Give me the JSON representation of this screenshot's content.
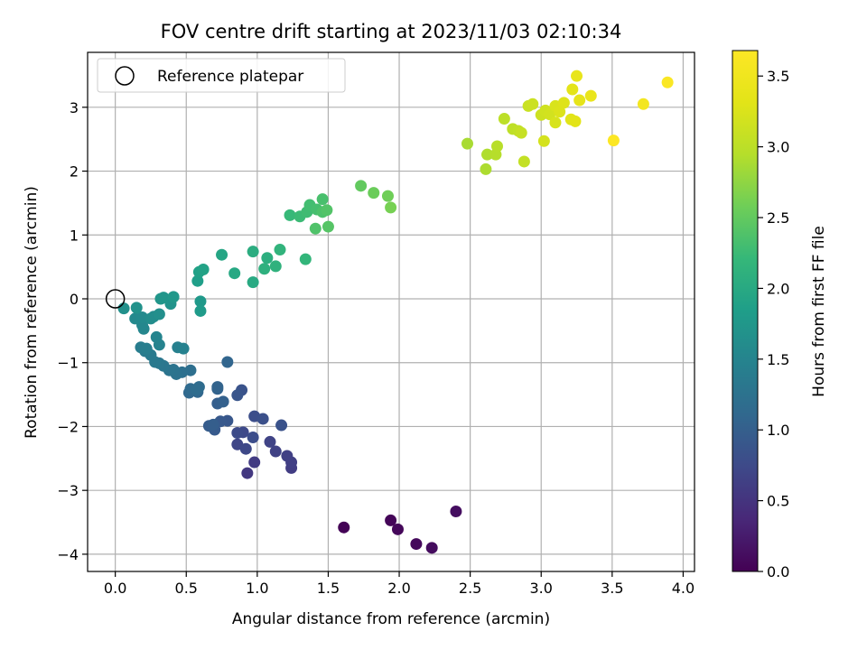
{
  "chart_data": {
    "type": "scatter",
    "title": "FOV centre drift starting at 2023/11/03 02:10:34",
    "xlabel": "Angular distance from reference (arcmin)",
    "ylabel": "Rotation from reference (arcmin)",
    "xlim": [
      -0.195,
      4.08
    ],
    "ylim": [
      -4.27,
      3.86
    ],
    "x_ticks": [
      0.0,
      0.5,
      1.0,
      1.5,
      2.0,
      2.5,
      3.0,
      3.5,
      4.0
    ],
    "x_tick_labels": [
      "0.0",
      "0.5",
      "1.0",
      "1.5",
      "2.0",
      "2.5",
      "3.0",
      "3.5",
      "4.0"
    ],
    "y_ticks": [
      -4,
      -3,
      -2,
      -1,
      0,
      1,
      2,
      3
    ],
    "y_tick_labels": [
      "−4",
      "−3",
      "−2",
      "−1",
      "0",
      "1",
      "2",
      "3"
    ],
    "grid": true,
    "legend": {
      "placement": "top-left",
      "entries": [
        "Reference platepar"
      ]
    },
    "reference_point": {
      "x": 0.0,
      "y": 0.0,
      "marker": "open-circle"
    },
    "colorbar": {
      "label": "Hours from first FF file",
      "colormap": "viridis",
      "range": [
        0.0,
        3.68
      ],
      "ticks": [
        0.0,
        0.5,
        1.0,
        1.5,
        2.0,
        2.5,
        3.0,
        3.5
      ],
      "tick_labels": [
        "0.0",
        "0.5",
        "1.0",
        "1.5",
        "2.0",
        "2.5",
        "3.0",
        "3.5"
      ]
    },
    "points": [
      [
        1.61,
        -3.58,
        0.02
      ],
      [
        1.94,
        -3.47,
        0.04
      ],
      [
        1.99,
        -3.61,
        0.06
      ],
      [
        2.12,
        -3.84,
        0.08
      ],
      [
        2.23,
        -3.9,
        0.1
      ],
      [
        2.4,
        -3.33,
        0.12
      ],
      [
        0.93,
        -2.73,
        0.55
      ],
      [
        0.98,
        -2.56,
        0.58
      ],
      [
        1.24,
        -2.65,
        0.6
      ],
      [
        1.24,
        -2.56,
        0.62
      ],
      [
        1.21,
        -2.46,
        0.64
      ],
      [
        1.13,
        -2.39,
        0.66
      ],
      [
        1.09,
        -2.24,
        0.68
      ],
      [
        0.86,
        -2.28,
        0.7
      ],
      [
        0.92,
        -2.35,
        0.72
      ],
      [
        0.9,
        -2.09,
        0.74
      ],
      [
        0.86,
        -2.1,
        0.76
      ],
      [
        0.97,
        -2.17,
        0.78
      ],
      [
        0.98,
        -1.84,
        0.8
      ],
      [
        1.04,
        -1.88,
        0.82
      ],
      [
        1.17,
        -1.98,
        0.84
      ],
      [
        0.89,
        -1.43,
        0.86
      ],
      [
        0.86,
        -1.51,
        0.88
      ],
      [
        0.79,
        -1.91,
        0.9
      ],
      [
        0.74,
        -1.92,
        0.92
      ],
      [
        0.7,
        -2.05,
        0.94
      ],
      [
        0.66,
        -1.99,
        0.96
      ],
      [
        0.69,
        -1.97,
        0.98
      ],
      [
        0.72,
        -1.64,
        1.0
      ],
      [
        0.76,
        -1.61,
        1.02
      ],
      [
        0.72,
        -1.41,
        1.04
      ],
      [
        0.72,
        -1.38,
        1.06
      ],
      [
        0.79,
        -0.99,
        1.08
      ],
      [
        0.58,
        -1.46,
        1.1
      ],
      [
        0.52,
        -1.47,
        1.12
      ],
      [
        0.53,
        -1.41,
        1.14
      ],
      [
        0.59,
        -1.38,
        1.16
      ],
      [
        0.57,
        -1.42,
        1.18
      ],
      [
        0.53,
        -1.12,
        1.2
      ],
      [
        0.47,
        -1.15,
        1.22
      ],
      [
        0.43,
        -1.18,
        1.24
      ],
      [
        0.41,
        -1.11,
        1.26
      ],
      [
        0.38,
        -1.12,
        1.28
      ],
      [
        0.34,
        -1.05,
        1.3
      ],
      [
        0.31,
        -1.01,
        1.32
      ],
      [
        0.28,
        -0.99,
        1.34
      ],
      [
        0.25,
        -0.88,
        1.36
      ],
      [
        0.21,
        -0.82,
        1.38
      ],
      [
        0.18,
        -0.76,
        1.4
      ],
      [
        0.22,
        -0.78,
        1.42
      ],
      [
        0.44,
        -0.76,
        1.44
      ],
      [
        0.48,
        -0.78,
        1.46
      ],
      [
        0.31,
        -0.72,
        1.48
      ],
      [
        0.29,
        -0.6,
        1.5
      ],
      [
        0.2,
        -0.47,
        1.52
      ],
      [
        0.19,
        -0.41,
        1.54
      ],
      [
        0.14,
        -0.31,
        1.56
      ],
      [
        0.19,
        -0.29,
        1.58
      ],
      [
        0.27,
        -0.28,
        1.6
      ],
      [
        0.25,
        -0.31,
        1.62
      ],
      [
        0.31,
        -0.24,
        1.64
      ],
      [
        0.06,
        -0.15,
        1.66
      ],
      [
        0.15,
        -0.14,
        1.68
      ],
      [
        0.39,
        -0.08,
        1.7
      ],
      [
        0.34,
        0.02,
        1.72
      ],
      [
        0.32,
        0.0,
        1.74
      ],
      [
        0.41,
        0.03,
        1.76
      ],
      [
        0.6,
        -0.04,
        1.78
      ],
      [
        0.6,
        -0.19,
        1.8
      ],
      [
        0.58,
        0.28,
        1.85
      ],
      [
        0.59,
        0.42,
        1.88
      ],
      [
        0.62,
        0.46,
        1.9
      ],
      [
        0.75,
        0.69,
        1.95
      ],
      [
        0.84,
        0.4,
        1.98
      ],
      [
        0.97,
        0.26,
        2.0
      ],
      [
        0.97,
        0.74,
        2.05
      ],
      [
        1.07,
        0.64,
        2.08
      ],
      [
        1.05,
        0.47,
        2.1
      ],
      [
        1.13,
        0.51,
        2.12
      ],
      [
        1.16,
        0.77,
        2.15
      ],
      [
        1.34,
        0.62,
        2.18
      ],
      [
        1.23,
        1.31,
        2.22
      ],
      [
        1.3,
        1.29,
        2.25
      ],
      [
        1.35,
        1.36,
        2.28
      ],
      [
        1.37,
        1.47,
        2.3
      ],
      [
        1.42,
        1.4,
        2.32
      ],
      [
        1.46,
        1.56,
        2.34
      ],
      [
        1.46,
        1.36,
        2.36
      ],
      [
        1.41,
        1.1,
        2.38
      ],
      [
        1.49,
        1.39,
        2.4
      ],
      [
        1.5,
        1.13,
        2.42
      ],
      [
        1.73,
        1.77,
        2.5
      ],
      [
        1.82,
        1.66,
        2.55
      ],
      [
        1.92,
        1.61,
        2.58
      ],
      [
        1.94,
        1.43,
        2.62
      ],
      [
        2.61,
        2.03,
        2.9
      ],
      [
        2.62,
        2.26,
        2.92
      ],
      [
        2.48,
        2.43,
        2.88
      ],
      [
        2.68,
        2.26,
        2.95
      ],
      [
        2.69,
        2.39,
        2.97
      ],
      [
        2.74,
        2.82,
        3.0
      ],
      [
        2.8,
        2.66,
        3.02
      ],
      [
        2.84,
        2.63,
        3.04
      ],
      [
        2.88,
        2.15,
        3.06
      ],
      [
        2.86,
        2.6,
        3.08
      ],
      [
        2.91,
        3.02,
        3.1
      ],
      [
        2.94,
        3.05,
        3.12
      ],
      [
        3.0,
        2.88,
        3.14
      ],
      [
        3.03,
        2.95,
        3.16
      ],
      [
        3.06,
        2.89,
        3.18
      ],
      [
        3.02,
        2.47,
        3.2
      ],
      [
        3.1,
        2.76,
        3.22
      ],
      [
        3.1,
        3.02,
        3.24
      ],
      [
        3.13,
        2.93,
        3.26
      ],
      [
        3.16,
        3.07,
        3.28
      ],
      [
        3.21,
        2.81,
        3.3
      ],
      [
        3.24,
        2.78,
        3.32
      ],
      [
        3.22,
        3.28,
        3.34
      ],
      [
        3.27,
        3.11,
        3.36
      ],
      [
        3.25,
        3.49,
        3.4
      ],
      [
        3.35,
        3.18,
        3.42
      ],
      [
        3.72,
        3.05,
        3.55
      ],
      [
        3.89,
        3.39,
        3.64
      ],
      [
        3.51,
        2.48,
        3.66
      ]
    ]
  }
}
